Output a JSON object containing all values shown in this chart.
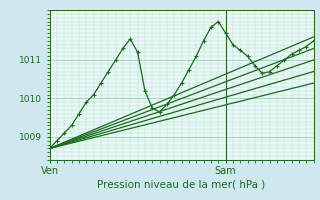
{
  "bg_color": "#cfe8f0",
  "plot_bg_color": "#e8f8f8",
  "grid_color_major": "#99ccbb",
  "grid_color_minor": "#bbddcc",
  "line_color": "#1a6b1a",
  "title": "Pression niveau de la mer( hPa )",
  "ymin": 1008.4,
  "ymax": 1012.3,
  "yticks": [
    1009,
    1010,
    1011
  ],
  "xmin": 0,
  "xmax": 36,
  "x_ven": 0,
  "x_sam": 24,
  "ven_label": "Ven",
  "sam_label": "Sam",
  "series0_x": [
    0,
    1,
    2,
    3,
    4,
    5,
    6,
    7,
    8,
    9,
    10,
    11,
    12,
    13,
    14,
    15,
    16,
    17,
    18,
    19,
    20,
    21,
    22,
    23,
    24,
    25,
    26,
    27,
    28,
    29,
    30,
    31,
    32,
    33,
    34,
    35,
    36
  ],
  "series0_y": [
    1008.7,
    1008.9,
    1009.1,
    1009.3,
    1009.6,
    1009.9,
    1010.1,
    1010.4,
    1010.7,
    1011.0,
    1011.3,
    1011.55,
    1011.2,
    1010.2,
    1009.75,
    1009.65,
    1009.85,
    1010.1,
    1010.4,
    1010.75,
    1011.1,
    1011.5,
    1011.85,
    1012.0,
    1011.7,
    1011.4,
    1011.25,
    1011.1,
    1010.85,
    1010.65,
    1010.7,
    1010.85,
    1011.0,
    1011.15,
    1011.25,
    1011.35,
    1011.5
  ],
  "envelope_lines": [
    {
      "x": [
        0,
        36
      ],
      "y": [
        1008.7,
        1011.6
      ]
    },
    {
      "x": [
        0,
        36
      ],
      "y": [
        1008.7,
        1011.3
      ]
    },
    {
      "x": [
        0,
        36
      ],
      "y": [
        1008.7,
        1011.0
      ]
    },
    {
      "x": [
        0,
        36
      ],
      "y": [
        1008.7,
        1010.7
      ]
    },
    {
      "x": [
        0,
        36
      ],
      "y": [
        1008.7,
        1010.4
      ]
    }
  ]
}
